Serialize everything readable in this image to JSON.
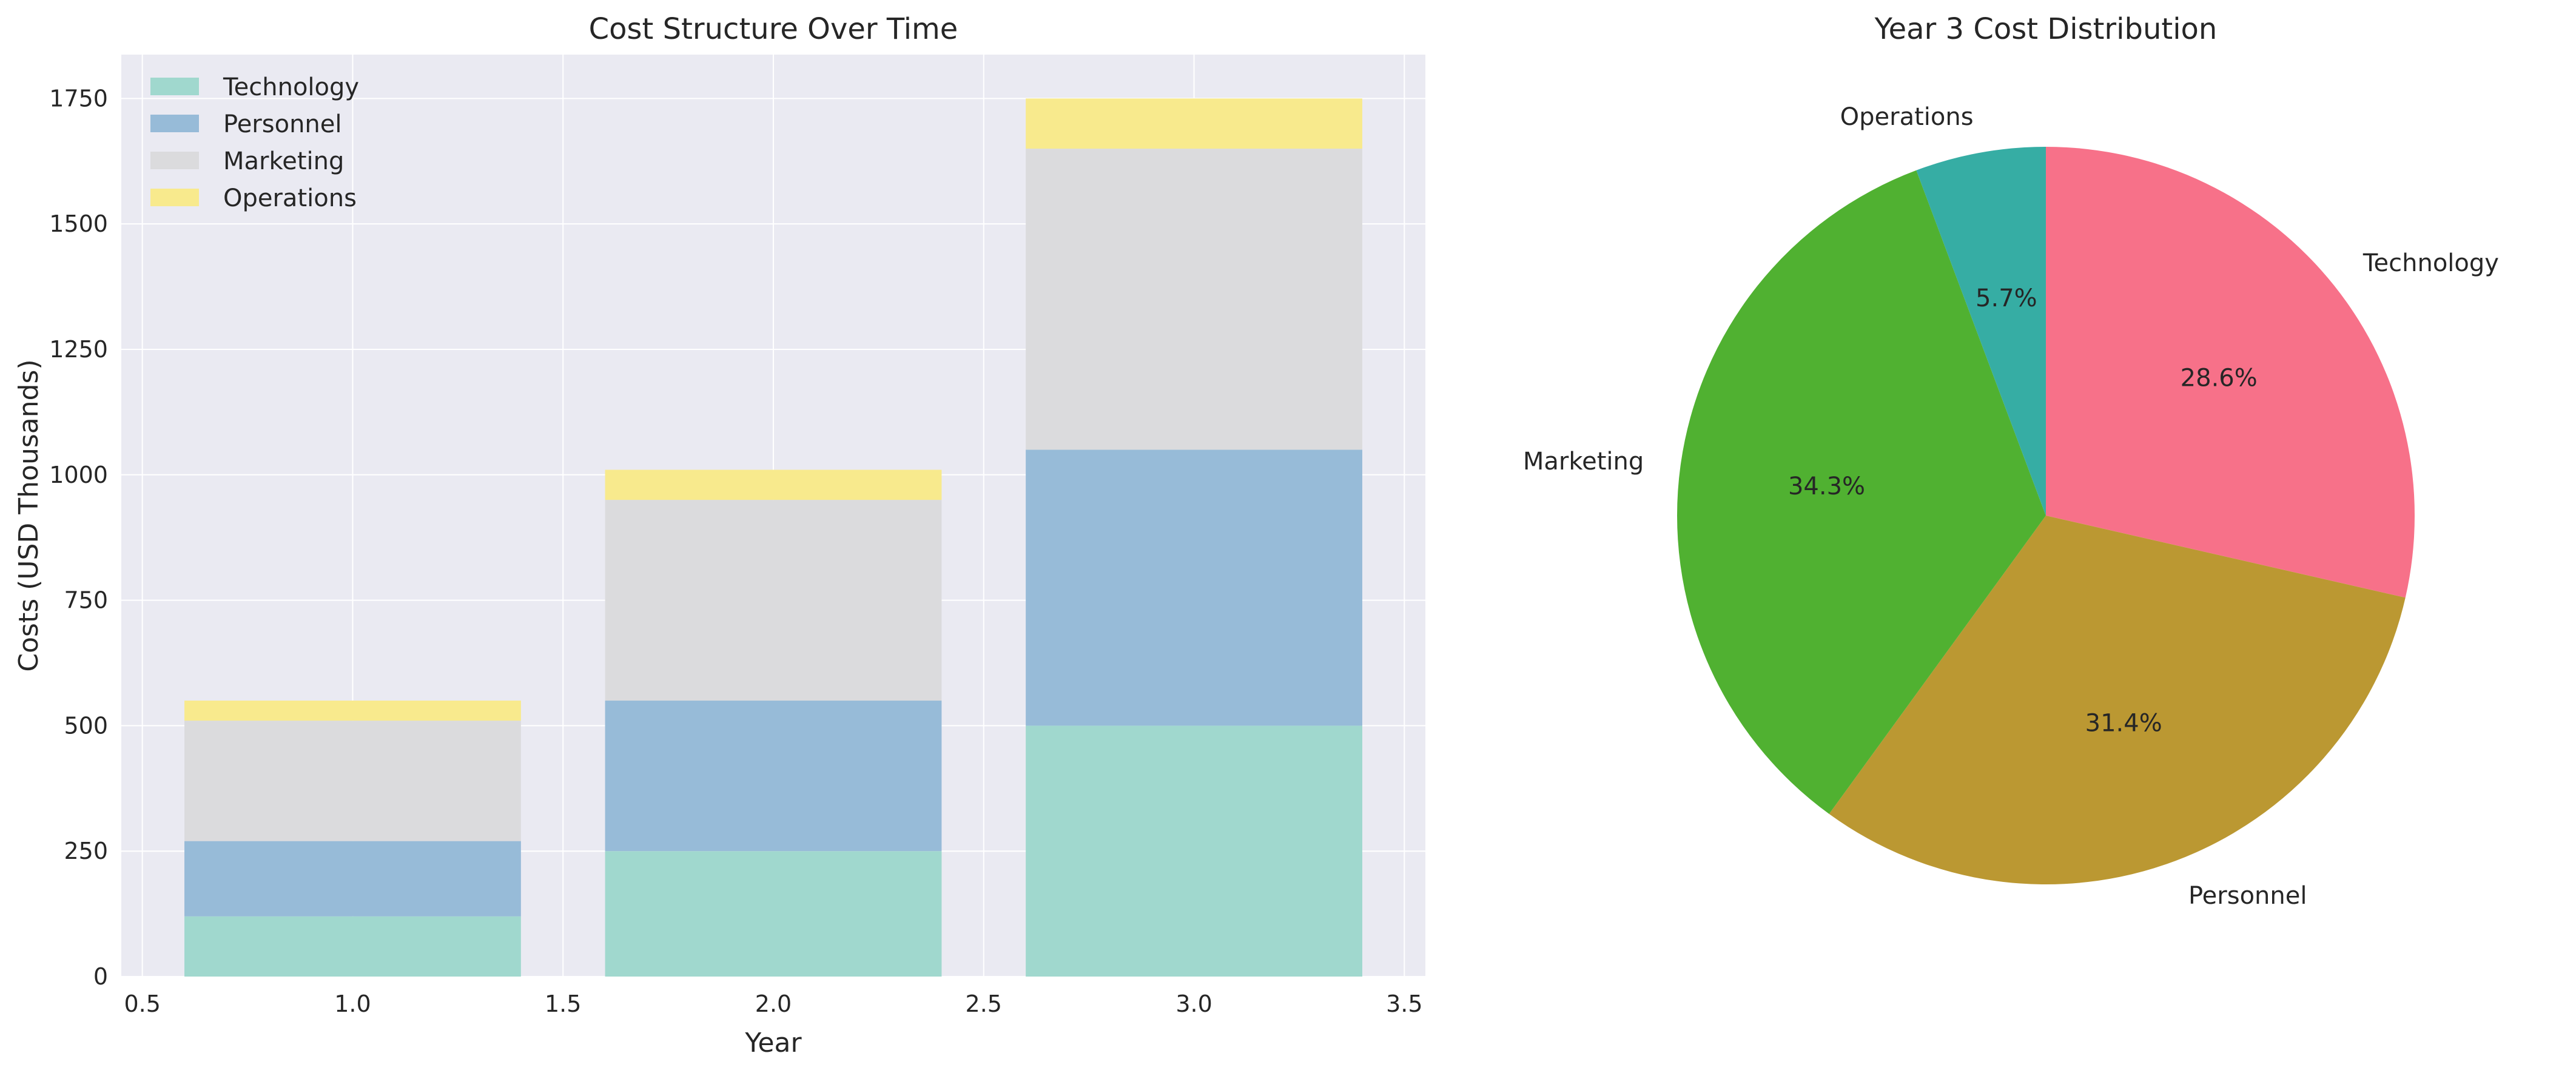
{
  "chart_data": [
    {
      "type": "bar",
      "stacked": true,
      "title": "Cost Structure Over Time",
      "xlabel": "Year",
      "ylabel": "Costs (USD Thousands)",
      "x": [
        1,
        2,
        3
      ],
      "bar_width": 0.8,
      "xlim": [
        0.45,
        3.55
      ],
      "ylim": [
        0,
        1837.5
      ],
      "xticks": [
        0.5,
        1.0,
        1.5,
        2.0,
        2.5,
        3.0,
        3.5
      ],
      "xtick_labels": [
        "0.5",
        "1.0",
        "1.5",
        "2.0",
        "2.5",
        "3.0",
        "3.5"
      ],
      "yticks": [
        0,
        250,
        500,
        750,
        1000,
        1250,
        1500,
        1750
      ],
      "ytick_labels": [
        "0",
        "250",
        "500",
        "750",
        "1000",
        "1250",
        "1500",
        "1750"
      ],
      "grid": true,
      "legend": "top-left",
      "series": [
        {
          "name": "Technology",
          "values": [
            120,
            250,
            500
          ],
          "color": "#a0d8ce"
        },
        {
          "name": "Personnel",
          "values": [
            150,
            300,
            550
          ],
          "color": "#97bbd8"
        },
        {
          "name": "Marketing",
          "values": [
            240,
            400,
            600
          ],
          "color": "#dbdbdd"
        },
        {
          "name": "Operations",
          "values": [
            40,
            60,
            100
          ],
          "color": "#f8ea8d"
        }
      ]
    },
    {
      "type": "pie",
      "title": "Year 3 Cost Distribution",
      "start_angle": 90,
      "direction": "clockwise",
      "slices": [
        {
          "label": "Technology",
          "value": 500,
          "pct_label": "28.6%",
          "color": "#f77189"
        },
        {
          "label": "Personnel",
          "value": 550,
          "pct_label": "31.4%",
          "color": "#bb9832"
        },
        {
          "label": "Marketing",
          "value": 600,
          "pct_label": "34.3%",
          "color": "#50b131"
        },
        {
          "label": "Operations",
          "value": 100,
          "pct_label": "5.7%",
          "color": "#36ada4"
        }
      ]
    }
  ]
}
